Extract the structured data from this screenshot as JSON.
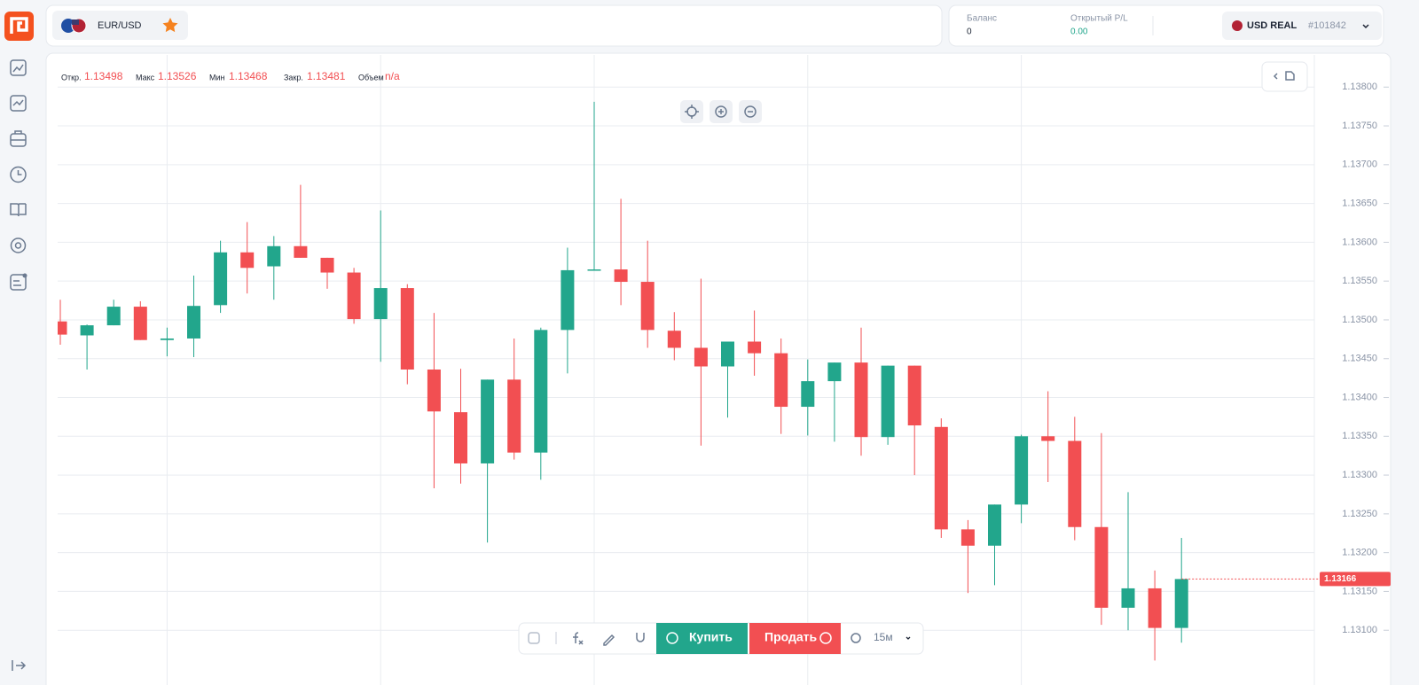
{
  "header": {
    "pair": "EUR/USD",
    "balance_label": "Баланс",
    "balance": "0",
    "pl_label": "Открытый P/L",
    "pl": "0.00",
    "account": "USD REAL",
    "account_id": "#101842"
  },
  "toolbar": {
    "buy": "Купить",
    "sell": "Продать",
    "interval": "15м"
  },
  "chart_data": {
    "type": "candlestick",
    "ohlc_labels": [
      "Откр.",
      "Макс",
      "Мин",
      "Закр.",
      "Объем"
    ],
    "ohlc_values": [
      1.13498,
      1.13526,
      1.13468,
      1.13481,
      "n/a"
    ],
    "up_color": "#22a68c",
    "down_color": "#f24f52",
    "open": [
      1.13498,
      1.1348,
      1.13493,
      1.13517,
      1.13474,
      1.13476,
      1.13519,
      1.13587,
      1.13569,
      1.13595,
      1.1358,
      1.13561,
      1.13501,
      1.13541,
      1.13436,
      1.13381,
      1.13315,
      1.13423,
      1.13329,
      1.13487,
      1.13564,
      1.13565,
      1.13549,
      1.13486,
      1.13464,
      1.1344,
      1.13472,
      1.13457,
      1.13388,
      1.13421,
      1.13445,
      1.13349,
      1.13441,
      1.13362,
      1.1323,
      1.13209,
      1.13262,
      1.1335,
      1.13344,
      1.13233,
      1.13129,
      1.13154,
      1.13103
    ],
    "high": [
      1.13526,
      1.13494,
      1.13526,
      1.13524,
      1.1349,
      1.13557,
      1.13602,
      1.13626,
      1.13608,
      1.13674,
      1.1358,
      1.13567,
      1.13641,
      1.13546,
      1.13509,
      1.13437,
      1.13423,
      1.13476,
      1.1349,
      1.13593,
      1.13781,
      1.13656,
      1.13602,
      1.1351,
      1.13553,
      1.13472,
      1.13512,
      1.13476,
      1.13449,
      1.13445,
      1.1349,
      1.13441,
      1.13441,
      1.13373,
      1.13242,
      1.13262,
      1.13352,
      1.13408,
      1.13375,
      1.13354,
      1.13278,
      1.13177,
      1.13219
    ],
    "low": [
      1.13468,
      1.13436,
      1.13493,
      1.13474,
      1.13453,
      1.13452,
      1.13509,
      1.13534,
      1.13526,
      1.1358,
      1.1354,
      1.13495,
      1.13446,
      1.13417,
      1.13283,
      1.13289,
      1.13213,
      1.1332,
      1.13294,
      1.13431,
      1.13564,
      1.13519,
      1.13464,
      1.13448,
      1.13338,
      1.13374,
      1.13428,
      1.13353,
      1.13351,
      1.13343,
      1.13325,
      1.13339,
      1.133,
      1.13219,
      1.13148,
      1.13158,
      1.13238,
      1.13291,
      1.13216,
      1.13107,
      1.131,
      1.13061,
      1.13084
    ],
    "close": [
      1.13481,
      1.13493,
      1.13517,
      1.13474,
      1.13476,
      1.13518,
      1.13587,
      1.13567,
      1.13595,
      1.1358,
      1.13561,
      1.13501,
      1.13541,
      1.13436,
      1.13382,
      1.13315,
      1.13423,
      1.13329,
      1.13487,
      1.13564,
      1.13565,
      1.13549,
      1.13487,
      1.13464,
      1.1344,
      1.13472,
      1.13457,
      1.13388,
      1.13421,
      1.13445,
      1.13349,
      1.13441,
      1.13364,
      1.1323,
      1.13209,
      1.13262,
      1.1335,
      1.13344,
      1.13233,
      1.13129,
      1.13154,
      1.13103,
      1.13166
    ],
    "current_price": 1.13166,
    "ylim": [
      1.1305,
      1.1383
    ],
    "yticks": [
      {
        "value": 1.131,
        "label": "1.13100"
      },
      {
        "value": 1.1315,
        "label": "1.13150"
      },
      {
        "value": 1.132,
        "label": "1.13200"
      },
      {
        "value": 1.1325,
        "label": "1.13250"
      },
      {
        "value": 1.133,
        "label": "1.13300"
      },
      {
        "value": 1.1335,
        "label": "1.13350"
      },
      {
        "value": 1.134,
        "label": "1.13400"
      },
      {
        "value": 1.1345,
        "label": "1.13450"
      },
      {
        "value": 1.135,
        "label": "1.13500"
      },
      {
        "value": 1.1355,
        "label": "1.13550"
      },
      {
        "value": 1.136,
        "label": "1.13600"
      },
      {
        "value": 1.1365,
        "label": "1.13650"
      },
      {
        "value": 1.137,
        "label": "1.13700"
      },
      {
        "value": 1.1375,
        "label": "1.13750"
      },
      {
        "value": 1.138,
        "label": "1.13800"
      }
    ],
    "grid": true
  }
}
